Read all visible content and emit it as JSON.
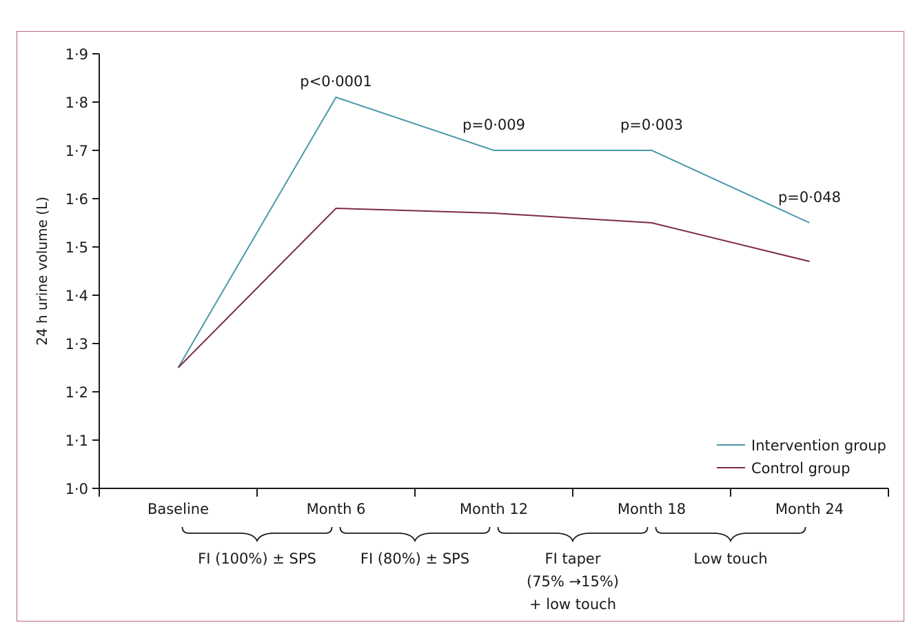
{
  "chart_data": {
    "type": "line",
    "title": "",
    "xlabel": "",
    "ylabel": "24 h urine volume (L)",
    "categories": [
      "Baseline",
      "Month 6",
      "Month 12",
      "Month 18",
      "Month 24"
    ],
    "ylim": [
      1.0,
      1.9
    ],
    "yticks": [
      "1·0",
      "1·1",
      "1·2",
      "1·3",
      "1·4",
      "1·5",
      "1·6",
      "1·7",
      "1·8",
      "1·9"
    ],
    "grid": false,
    "legend_position": "bottom-right",
    "series": [
      {
        "name": "Intervention group",
        "color": "#4a98a8",
        "values": [
          1.25,
          1.81,
          1.7,
          1.7,
          1.55
        ]
      },
      {
        "name": "Control group",
        "color": "#7d2a42",
        "values": [
          1.25,
          1.58,
          1.57,
          1.55,
          1.47
        ]
      }
    ],
    "annotations": [
      {
        "category": "Month 6",
        "text": "p<0·0001"
      },
      {
        "category": "Month 12",
        "text": "p=0·009"
      },
      {
        "category": "Month 18",
        "text": "p=0·003"
      },
      {
        "category": "Month 24",
        "text": "p=0·048"
      }
    ],
    "phases": [
      {
        "from": "Baseline",
        "to": "Month 6",
        "lines": [
          "FI (100%) ± SPS"
        ]
      },
      {
        "from": "Month 6",
        "to": "Month 12",
        "lines": [
          "FI (80%) ± SPS"
        ]
      },
      {
        "from": "Month 12",
        "to": "Month 18",
        "lines": [
          "FI taper",
          "(75% →15%)",
          "+ low touch"
        ]
      },
      {
        "from": "Month 18",
        "to": "Month 24",
        "lines": [
          "Low touch"
        ]
      }
    ]
  }
}
